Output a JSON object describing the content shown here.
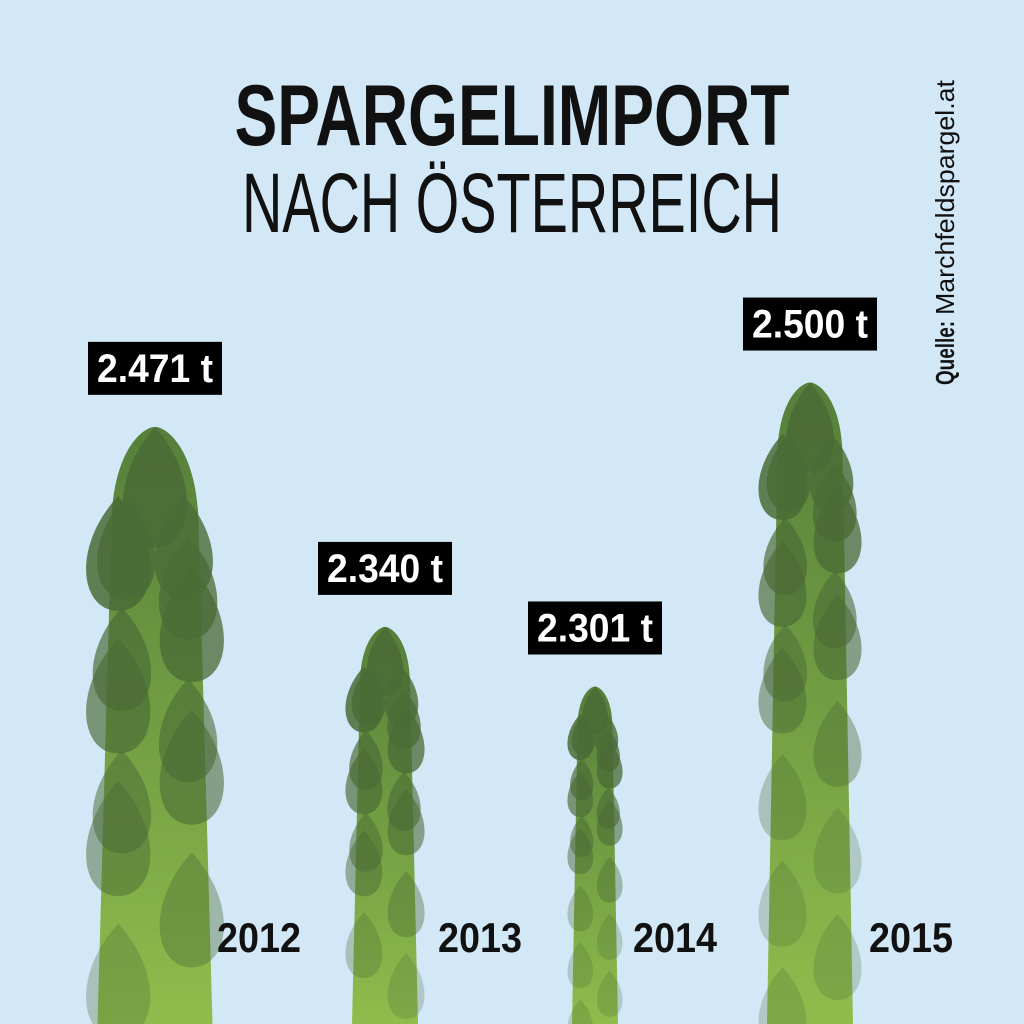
{
  "chart_data": {
    "type": "bar",
    "title": "SPARGELIMPORT",
    "subtitle": "NACH ÖSTERREICH",
    "source_label": "Quelle:",
    "source": "Marchfeldspargel.at",
    "categories": [
      "2012",
      "2013",
      "2014",
      "2015"
    ],
    "values": [
      2471,
      2340,
      2301,
      2500
    ],
    "value_labels": [
      "2.471 t",
      "2.340 t",
      "2.301 t",
      "2.500 t"
    ],
    "ylim": [
      2080,
      2520
    ],
    "color": "#6f9a3e"
  }
}
